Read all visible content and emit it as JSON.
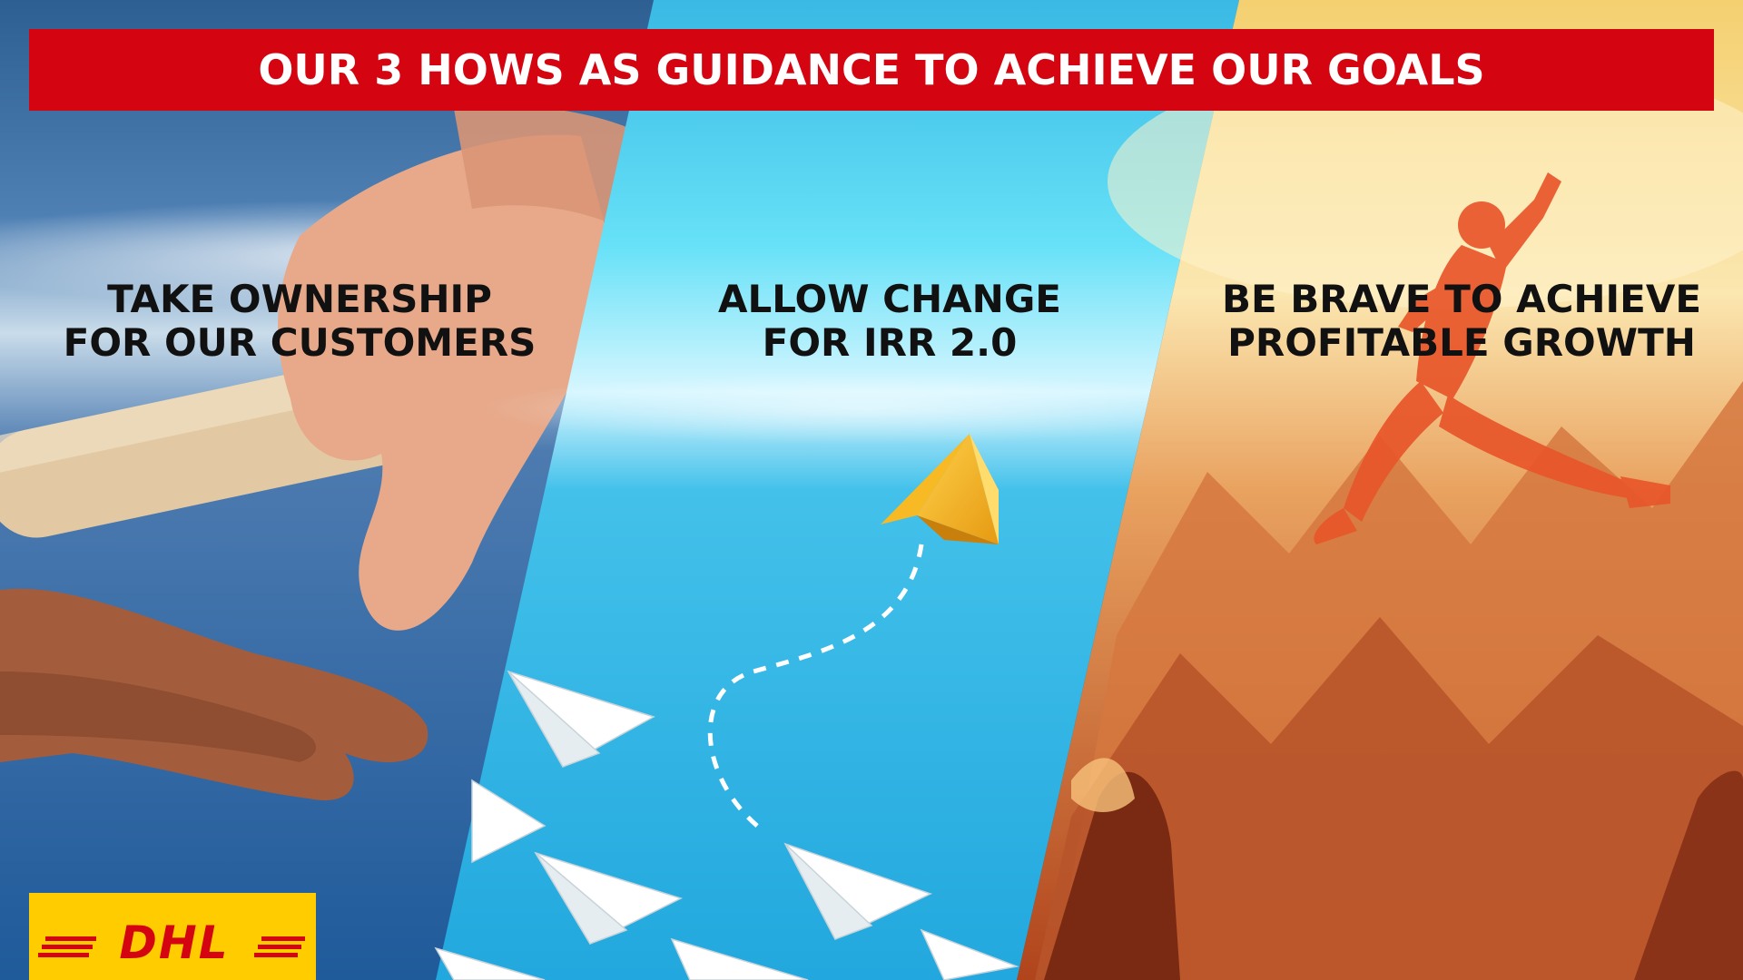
{
  "banner": {
    "title": "OUR 3 HOWS AS GUIDANCE TO ACHIEVE OUR GOALS"
  },
  "panels": [
    {
      "heading_line1": "TAKE OWNERSHIP",
      "heading_line2": "FOR OUR CUSTOMERS",
      "image": "relay-baton-handoff"
    },
    {
      "heading_line1": "ALLOW CHANGE",
      "heading_line2": "FOR IRR 2.0",
      "image": "paper-planes-one-yellow-diverging"
    },
    {
      "heading_line1": "BE BRAVE TO ACHIEVE",
      "heading_line2": "PROFITABLE GROWTH",
      "image": "person-jumping-between-mountains"
    }
  ],
  "logo": {
    "text": "DHL"
  },
  "colors": {
    "brand_red": "#d40511",
    "brand_yellow": "#ffcc00",
    "heading_text": "#111111"
  }
}
